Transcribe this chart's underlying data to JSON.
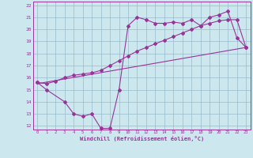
{
  "xlabel": "Windchill (Refroidissement éolien,°C)",
  "bg_color": "#cce8ee",
  "line_color": "#993399",
  "grid_color": "#99bbcc",
  "xlim": [
    -0.5,
    23.5
  ],
  "ylim": [
    11.7,
    22.3
  ],
  "xticks": [
    0,
    1,
    2,
    3,
    4,
    5,
    6,
    7,
    8,
    9,
    10,
    11,
    12,
    13,
    14,
    15,
    16,
    17,
    18,
    19,
    20,
    21,
    22,
    23
  ],
  "yticks": [
    12,
    13,
    14,
    15,
    16,
    17,
    18,
    19,
    20,
    21,
    22
  ],
  "line_smooth": {
    "x": [
      0,
      1,
      2,
      3,
      4,
      5,
      6,
      7,
      8,
      9,
      10,
      11,
      12,
      13,
      14,
      15,
      16,
      17,
      18,
      19,
      20,
      21,
      22,
      23
    ],
    "y": [
      15.6,
      15.5,
      15.7,
      16.0,
      16.2,
      16.3,
      16.4,
      16.6,
      17.0,
      17.4,
      17.8,
      18.2,
      18.5,
      18.8,
      19.1,
      19.4,
      19.7,
      20.0,
      20.3,
      20.5,
      20.7,
      20.8,
      20.8,
      18.5
    ]
  },
  "line_jagged": {
    "x": [
      0,
      1,
      3,
      4,
      5,
      6,
      7,
      8,
      9,
      10,
      11,
      12,
      13,
      14,
      15,
      16,
      17,
      18,
      19,
      20,
      21,
      22,
      23
    ],
    "y": [
      15.6,
      15.0,
      14.0,
      13.0,
      12.8,
      13.0,
      11.8,
      11.8,
      15.0,
      20.3,
      21.0,
      20.8,
      20.5,
      20.5,
      20.6,
      20.5,
      20.8,
      20.3,
      21.0,
      21.2,
      21.5,
      19.3,
      18.5
    ]
  },
  "line_ref": {
    "x": [
      0,
      23
    ],
    "y": [
      15.5,
      18.5
    ]
  }
}
